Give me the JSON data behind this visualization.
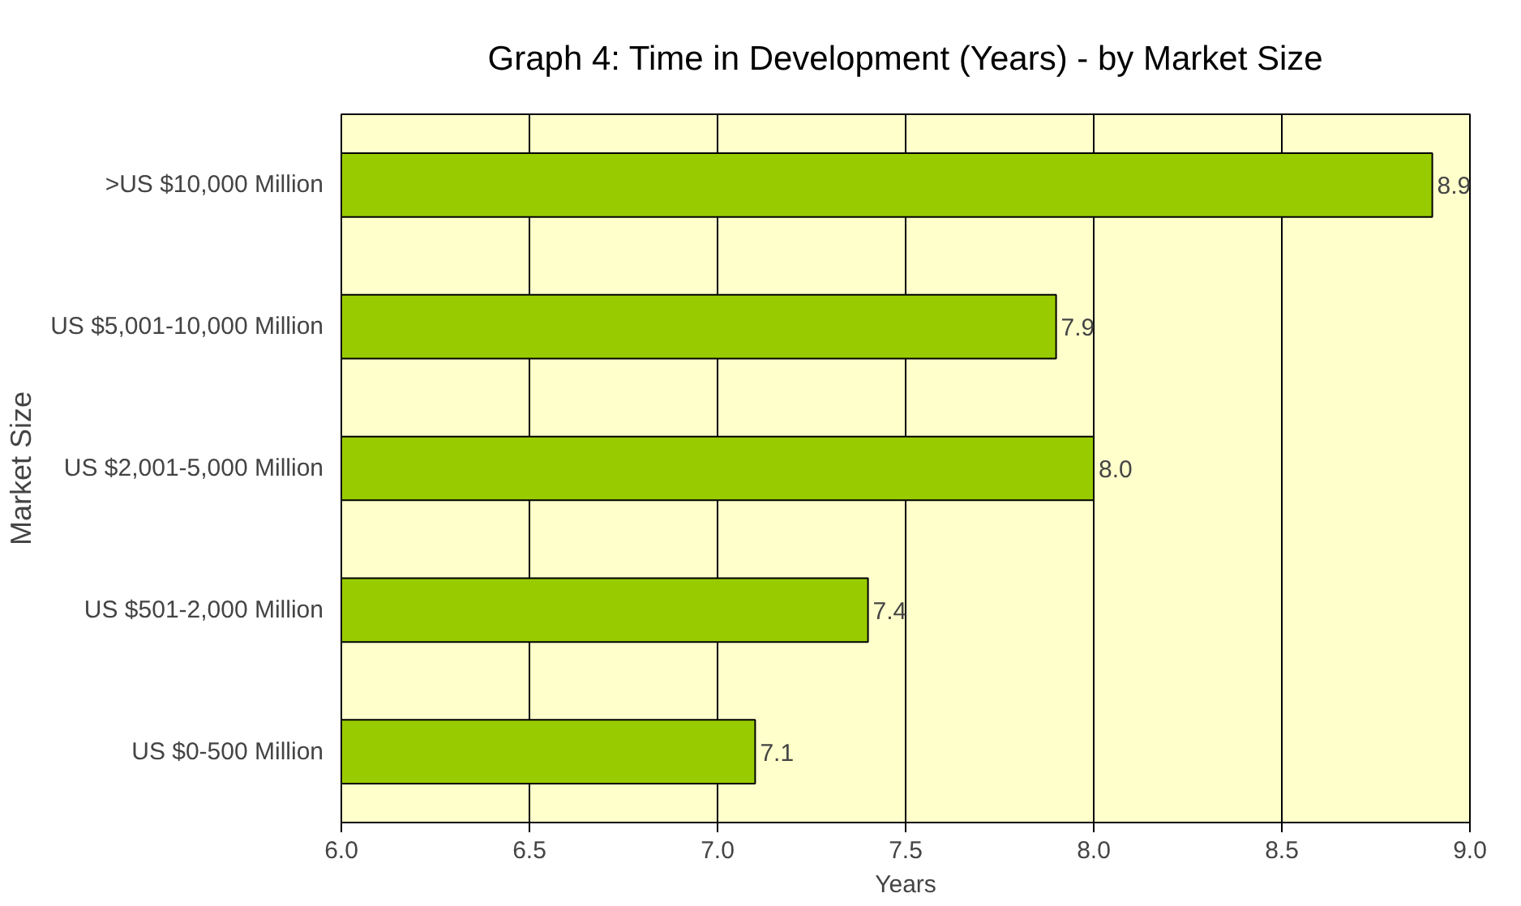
{
  "chart_data": {
    "type": "bar",
    "orientation": "horizontal",
    "title": "Graph 4: Time in Development (Years) - by Market Size",
    "xlabel": "Years",
    "ylabel": "Market Size",
    "categories": [
      ">US $10,000 Million",
      "US $5,001-10,000 Million",
      "US $2,001-5,000 Million",
      "US $501-2,000 Million",
      "US $0-500 Million"
    ],
    "values": [
      8.9,
      7.9,
      8.0,
      7.4,
      7.1
    ],
    "color": "#99cc00",
    "value_labels": [
      "8.9",
      "7.9",
      "8.0",
      "7.4",
      "7.1"
    ],
    "xlim": [
      6,
      9
    ],
    "xticks": [
      {
        "value": 6,
        "label": "6.0"
      },
      {
        "value": 6.5,
        "label": "6.5"
      },
      {
        "value": 7,
        "label": "7.0"
      },
      {
        "value": 7.5,
        "label": "7.5"
      },
      {
        "value": 8,
        "label": "8.0"
      },
      {
        "value": 8.5,
        "label": "8.5"
      },
      {
        "value": 9,
        "label": "9.0"
      }
    ],
    "grid": "x"
  }
}
